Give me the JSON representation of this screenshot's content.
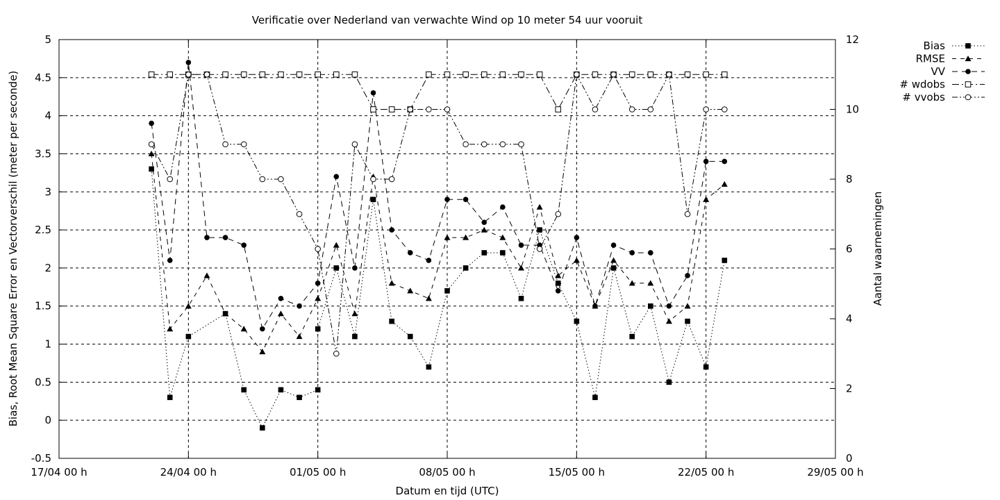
{
  "chart_data": {
    "type": "line",
    "title": "Verificatie over Nederland van verwachte Wind op 10 meter 54 uur vooruit",
    "xlabel": "Datum en tijd (UTC)",
    "ylabel": "Bias, Root Mean Square Error en Vectorverschil (meter per seconde)",
    "y2label": "Aantal waarnemingen",
    "xlim": [
      "2025-04-17",
      "2025-05-29"
    ],
    "x_tick_labels": [
      "17/04 00 h",
      "24/04 00 h",
      "01/05 00 h",
      "08/05 00 h",
      "15/05 00 h",
      "22/05 00 h",
      "29/05 00 h"
    ],
    "ylim": [
      -0.5,
      5
    ],
    "y_tick_labels": [
      "-0.5",
      "0",
      "0.5",
      "1",
      "1.5",
      "2",
      "2.5",
      "3",
      "3.5",
      "4",
      "4.5",
      "5"
    ],
    "y2lim": [
      0,
      12
    ],
    "y2_tick_labels": [
      "0",
      "2",
      "4",
      "6",
      "8",
      "10",
      "12"
    ],
    "grid": true,
    "legend_position": "outside-top-right",
    "series": [
      {
        "name": "Bias",
        "axis": "left",
        "dash": "dotted",
        "marker": "filled-square",
        "points": [
          [
            "2025-04-22",
            3.3
          ],
          [
            "2025-04-23",
            0.3
          ],
          [
            "2025-04-24",
            1.1
          ],
          [
            "2025-04-26",
            1.4
          ],
          [
            "2025-04-27",
            0.4
          ],
          [
            "2025-04-28",
            -0.1
          ],
          [
            "2025-04-29",
            0.4
          ],
          [
            "2025-04-30",
            0.3
          ],
          [
            "2025-05-01",
            0.4
          ],
          [
            "2025-05-01",
            1.2
          ],
          [
            "2025-05-02",
            2.0
          ],
          [
            "2025-05-03",
            1.1
          ],
          [
            "2025-05-04",
            2.9
          ],
          [
            "2025-05-05",
            1.3
          ],
          [
            "2025-05-06",
            1.1
          ],
          [
            "2025-05-07",
            0.7
          ],
          [
            "2025-05-08",
            1.7
          ],
          [
            "2025-05-09",
            2.0
          ],
          [
            "2025-05-10",
            2.2
          ],
          [
            "2025-05-11",
            2.2
          ],
          [
            "2025-05-12",
            1.6
          ],
          [
            "2025-05-13",
            2.5
          ],
          [
            "2025-05-14",
            1.8
          ],
          [
            "2025-05-15",
            1.3
          ],
          [
            "2025-05-16",
            0.3
          ],
          [
            "2025-05-17",
            2.0
          ],
          [
            "2025-05-18",
            1.1
          ],
          [
            "2025-05-19",
            1.5
          ],
          [
            "2025-05-20",
            0.5
          ],
          [
            "2025-05-21",
            1.3
          ],
          [
            "2025-05-22",
            0.7
          ],
          [
            "2025-05-23",
            2.1
          ]
        ]
      },
      {
        "name": "RMSE",
        "axis": "left",
        "dash": "dashed",
        "marker": "filled-triangle",
        "points": [
          [
            "2025-04-22",
            3.5
          ],
          [
            "2025-04-23",
            1.2
          ],
          [
            "2025-04-24",
            1.5
          ],
          [
            "2025-04-25",
            1.9
          ],
          [
            "2025-04-26",
            1.4
          ],
          [
            "2025-04-27",
            1.2
          ],
          [
            "2025-04-28",
            0.9
          ],
          [
            "2025-04-29",
            1.4
          ],
          [
            "2025-04-30",
            1.1
          ],
          [
            "2025-05-01",
            1.6
          ],
          [
            "2025-05-02",
            2.3
          ],
          [
            "2025-05-03",
            1.4
          ],
          [
            "2025-05-04",
            3.2
          ],
          [
            "2025-05-05",
            1.8
          ],
          [
            "2025-05-06",
            1.7
          ],
          [
            "2025-05-07",
            1.6
          ],
          [
            "2025-05-08",
            2.4
          ],
          [
            "2025-05-09",
            2.4
          ],
          [
            "2025-05-10",
            2.5
          ],
          [
            "2025-05-11",
            2.4
          ],
          [
            "2025-05-12",
            2.0
          ],
          [
            "2025-05-13",
            2.8
          ],
          [
            "2025-05-14",
            1.9
          ],
          [
            "2025-05-15",
            2.1
          ],
          [
            "2025-05-16",
            1.5
          ],
          [
            "2025-05-17",
            2.1
          ],
          [
            "2025-05-18",
            1.8
          ],
          [
            "2025-05-19",
            1.8
          ],
          [
            "2025-05-20",
            1.3
          ],
          [
            "2025-05-21",
            1.5
          ],
          [
            "2025-05-22",
            2.9
          ],
          [
            "2025-05-23",
            3.1
          ]
        ]
      },
      {
        "name": "VV",
        "axis": "left",
        "dash": "long-dashed",
        "marker": "filled-circle",
        "points": [
          [
            "2025-04-22",
            3.9
          ],
          [
            "2025-04-23",
            2.1
          ],
          [
            "2025-04-24",
            4.7
          ],
          [
            "2025-04-25",
            2.4
          ],
          [
            "2025-04-26",
            2.4
          ],
          [
            "2025-04-27",
            2.3
          ],
          [
            "2025-04-28",
            1.2
          ],
          [
            "2025-04-29",
            1.6
          ],
          [
            "2025-04-30",
            1.5
          ],
          [
            "2025-05-01",
            1.8
          ],
          [
            "2025-05-02",
            3.2
          ],
          [
            "2025-05-03",
            2.0
          ],
          [
            "2025-05-04",
            4.3
          ],
          [
            "2025-05-05",
            2.5
          ],
          [
            "2025-05-06",
            2.2
          ],
          [
            "2025-05-07",
            2.1
          ],
          [
            "2025-05-08",
            2.9
          ],
          [
            "2025-05-09",
            2.9
          ],
          [
            "2025-05-10",
            2.6
          ],
          [
            "2025-05-11",
            2.8
          ],
          [
            "2025-05-12",
            2.3
          ],
          [
            "2025-05-13",
            2.3
          ],
          [
            "2025-05-14",
            1.7
          ],
          [
            "2025-05-15",
            2.4
          ],
          [
            "2025-05-16",
            1.5
          ],
          [
            "2025-05-17",
            2.3
          ],
          [
            "2025-05-18",
            2.2
          ],
          [
            "2025-05-19",
            2.2
          ],
          [
            "2025-05-20",
            1.5
          ],
          [
            "2025-05-21",
            1.9
          ],
          [
            "2025-05-22",
            3.4
          ],
          [
            "2025-05-23",
            3.4
          ]
        ]
      },
      {
        "name": "# wdobs",
        "axis": "right",
        "dash": "dash-dot",
        "marker": "open-square",
        "points": [
          [
            "2025-04-22",
            11
          ],
          [
            "2025-04-23",
            11
          ],
          [
            "2025-04-24",
            11
          ],
          [
            "2025-04-25",
            11
          ],
          [
            "2025-04-26",
            11
          ],
          [
            "2025-04-27",
            11
          ],
          [
            "2025-04-28",
            11
          ],
          [
            "2025-04-29",
            11
          ],
          [
            "2025-04-30",
            11
          ],
          [
            "2025-05-01",
            11
          ],
          [
            "2025-05-02",
            11
          ],
          [
            "2025-05-03",
            11
          ],
          [
            "2025-05-04",
            10
          ],
          [
            "2025-05-05",
            10
          ],
          [
            "2025-05-06",
            10
          ],
          [
            "2025-05-07",
            11
          ],
          [
            "2025-05-08",
            11
          ],
          [
            "2025-05-09",
            11
          ],
          [
            "2025-05-10",
            11
          ],
          [
            "2025-05-11",
            11
          ],
          [
            "2025-05-12",
            11
          ],
          [
            "2025-05-13",
            11
          ],
          [
            "2025-05-14",
            10
          ],
          [
            "2025-05-15",
            11
          ],
          [
            "2025-05-16",
            11
          ],
          [
            "2025-05-17",
            11
          ],
          [
            "2025-05-18",
            11
          ],
          [
            "2025-05-19",
            11
          ],
          [
            "2025-05-20",
            11
          ],
          [
            "2025-05-21",
            11
          ],
          [
            "2025-05-22",
            11
          ],
          [
            "2025-05-23",
            11
          ]
        ]
      },
      {
        "name": "# vvobs",
        "axis": "right",
        "dash": "dash-dot-dot",
        "marker": "open-circle",
        "points": [
          [
            "2025-04-22",
            9
          ],
          [
            "2025-04-23",
            8
          ],
          [
            "2025-04-24",
            11
          ],
          [
            "2025-04-25",
            11
          ],
          [
            "2025-04-26",
            9
          ],
          [
            "2025-04-27",
            9
          ],
          [
            "2025-04-28",
            8
          ],
          [
            "2025-04-29",
            8
          ],
          [
            "2025-04-30",
            7
          ],
          [
            "2025-05-01",
            6
          ],
          [
            "2025-05-02",
            3
          ],
          [
            "2025-05-03",
            9
          ],
          [
            "2025-05-04",
            8
          ],
          [
            "2025-05-05",
            8
          ],
          [
            "2025-05-06",
            10
          ],
          [
            "2025-05-07",
            10
          ],
          [
            "2025-05-08",
            10
          ],
          [
            "2025-05-09",
            9
          ],
          [
            "2025-05-10",
            9
          ],
          [
            "2025-05-11",
            9
          ],
          [
            "2025-05-12",
            9
          ],
          [
            "2025-05-13",
            6
          ],
          [
            "2025-05-14",
            7
          ],
          [
            "2025-05-15",
            11
          ],
          [
            "2025-05-16",
            10
          ],
          [
            "2025-05-17",
            11
          ],
          [
            "2025-05-18",
            10
          ],
          [
            "2025-05-19",
            10
          ],
          [
            "2025-05-20",
            11
          ],
          [
            "2025-05-21",
            7
          ],
          [
            "2025-05-22",
            10
          ],
          [
            "2025-05-23",
            10
          ]
        ]
      }
    ]
  }
}
